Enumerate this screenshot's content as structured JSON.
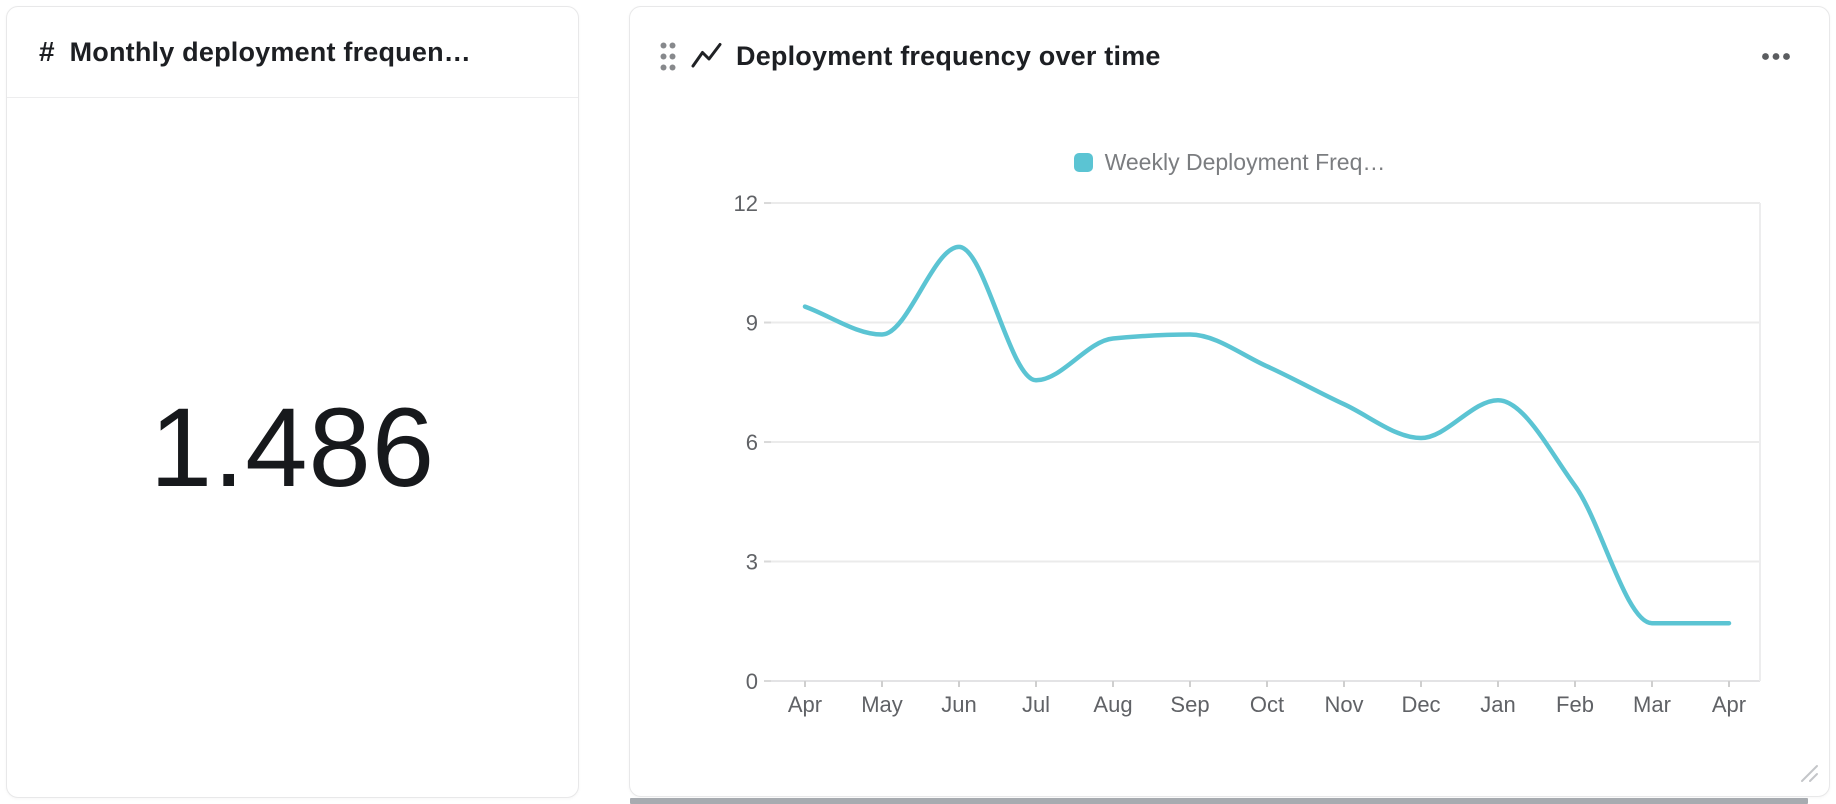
{
  "kpi_card": {
    "icon": "number-sign-icon",
    "title": "Monthly deployment frequen…",
    "value": "1.486"
  },
  "chart_card": {
    "drag_icon": "drag-handle-icon",
    "type_icon": "line-chart-icon",
    "title": "Deployment frequency over time",
    "menu_icon": "more-options-icon"
  },
  "colors": {
    "accent_teal": "#5bc4d3",
    "title_text": "#1d1f23",
    "axis_text": "#606266",
    "legend_text": "#7b7d80",
    "gridline": "#ebebeb",
    "bottom_bar": "#a7abb0"
  },
  "chart_data": [
    {
      "type": "number",
      "title": "Monthly deployment frequen…",
      "value": 1.486
    },
    {
      "type": "line",
      "title": "Deployment frequency over time",
      "legend_position": "top",
      "grid": true,
      "smooth": true,
      "categories": [
        "Apr",
        "May",
        "Jun",
        "Jul",
        "Aug",
        "Sep",
        "Oct",
        "Nov",
        "Dec",
        "Jan",
        "Feb",
        "Mar",
        "Apr"
      ],
      "series": [
        {
          "name": "Weekly Deployment Freq…",
          "color": "#5bc4d3",
          "values": [
            9.4,
            8.7,
            10.9,
            7.55,
            8.6,
            8.7,
            7.9,
            6.95,
            6.1,
            7.05,
            4.9,
            1.45,
            1.45
          ]
        }
      ],
      "xlabel": "",
      "ylabel": "",
      "ylim": [
        0,
        12
      ],
      "yticks": [
        0,
        3,
        6,
        9,
        12
      ]
    }
  ]
}
